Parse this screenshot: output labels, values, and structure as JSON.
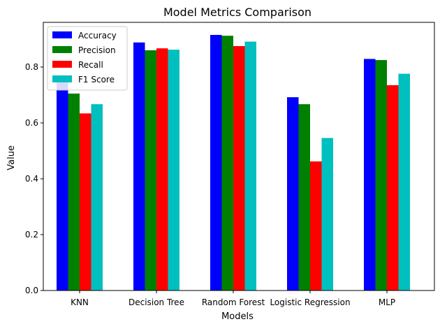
{
  "chart_data": {
    "type": "bar",
    "title": "Model Metrics Comparison",
    "xlabel": "Models",
    "ylabel": "Value",
    "categories": [
      "KNN",
      "Decision Tree",
      "Random Forest",
      "Logistic Regression",
      "MLP"
    ],
    "series": [
      {
        "name": "Accuracy",
        "color": "#0000ff",
        "values": [
          0.75,
          0.888,
          0.915,
          0.692,
          0.829
        ]
      },
      {
        "name": "Precision",
        "color": "#008000",
        "values": [
          0.705,
          0.86,
          0.912,
          0.667,
          0.825
        ]
      },
      {
        "name": "Recall",
        "color": "#ff0000",
        "values": [
          0.634,
          0.867,
          0.875,
          0.462,
          0.735
        ]
      },
      {
        "name": "F1 Score",
        "color": "#00bfbf",
        "values": [
          0.667,
          0.862,
          0.891,
          0.546,
          0.776
        ]
      }
    ],
    "yticks": [
      0.0,
      0.2,
      0.4,
      0.6,
      0.8
    ],
    "ytick_labels": [
      "0.0",
      "0.2",
      "0.4",
      "0.6",
      "0.8"
    ],
    "ylim": [
      0,
      0.96
    ],
    "grid": false,
    "legend_position": "top-left"
  }
}
